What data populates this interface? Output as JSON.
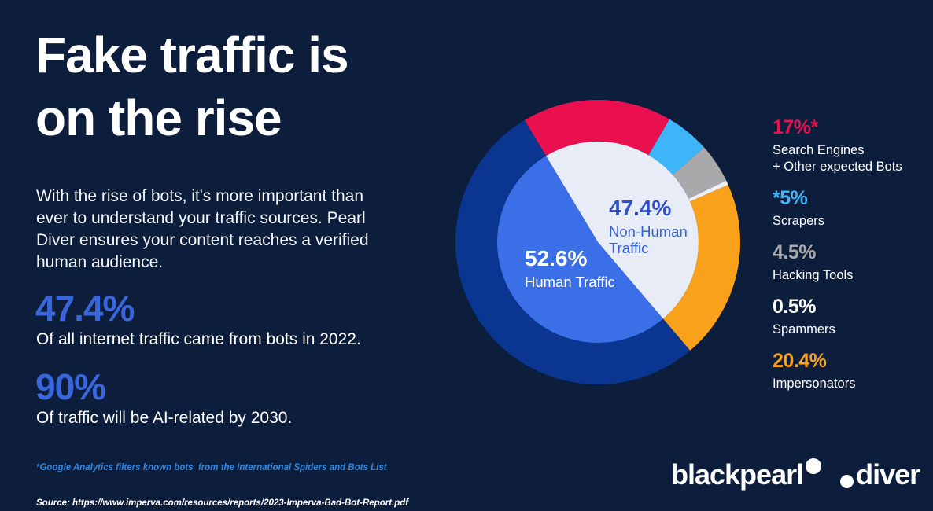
{
  "page": {
    "background": "#0D1E3C"
  },
  "title": {
    "line1": "Fake traffic is",
    "line2": "on the rise"
  },
  "intro": "With the rise of bots, it's more important than\never to understand your traffic sources. Pearl\nDiver ensures your content reaches a verified\nhuman audience.",
  "stats": [
    {
      "value": "47.4%",
      "caption": "Of all internet traffic came from bots in 2022.",
      "color": "#3A66DC"
    },
    {
      "value": "90%",
      "caption": "Of traffic will be AI-related by 2030.",
      "color": "#3A66DC"
    }
  ],
  "footnote": {
    "note": "*Google Analytics filters known bots  from the International Spiders and Bots List",
    "note_color": "#2F86DC",
    "source": "Source: https://www.imperva.com/resources/reports/2023-Imperva-Bad-Bot-Report.pdf"
  },
  "chart_data": {
    "type": "pie",
    "title": "",
    "subtype": "donut-with-inner-pie",
    "start_angle_deg": -31,
    "legend_position": "right",
    "outer_ring": [
      {
        "label": "Search Engines + Other expected Bots",
        "value": 17,
        "color": "#EA0F4F"
      },
      {
        "label": "Scrapers",
        "value": 5,
        "color": "#3DB5F8"
      },
      {
        "label": "Hacking Tools",
        "value": 4.5,
        "color": "#A9A9AB"
      },
      {
        "label": "Spammers",
        "value": 0.5,
        "color": "#EDF1F7"
      },
      {
        "label": "Impersonators",
        "value": 20.4,
        "color": "#F9A11B"
      },
      {
        "label": "Human Traffic",
        "value": 52.6,
        "color": "#0A3590"
      }
    ],
    "inner_pie": [
      {
        "label": "Non-Human Traffic",
        "value": 47.4,
        "color": "#E8ECF6"
      },
      {
        "label": "Human Traffic",
        "value": 52.6,
        "color": "#3B6FE8"
      }
    ],
    "center_labels": {
      "nonhuman": {
        "value": "47.4%",
        "label": "Non-Human\nTraffic",
        "value_color": "#2E50CE",
        "label_color": "#3461D8"
      },
      "human": {
        "value": "52.6%",
        "label": "Human Traffic",
        "value_color": "#FFFFFF",
        "label_color": "#FFFFFF"
      }
    }
  },
  "legend": {
    "items": [
      {
        "value": "17%*",
        "label": "Search Engines\n+ Other expected Bots",
        "color": "#EA0F4F"
      },
      {
        "value": "*5%",
        "label": "Scrapers",
        "color": "#3DB5F8"
      },
      {
        "value": "4.5%",
        "label": "Hacking Tools",
        "color": "#A9A9AB"
      },
      {
        "value": "0.5%",
        "label": "Spammers",
        "color": "#FFFFFF"
      },
      {
        "value": "20.4%",
        "label": "Impersonators",
        "color": "#F9A11B"
      }
    ]
  },
  "logos": {
    "brand1": "blackpearl",
    "brand2": "diver"
  }
}
